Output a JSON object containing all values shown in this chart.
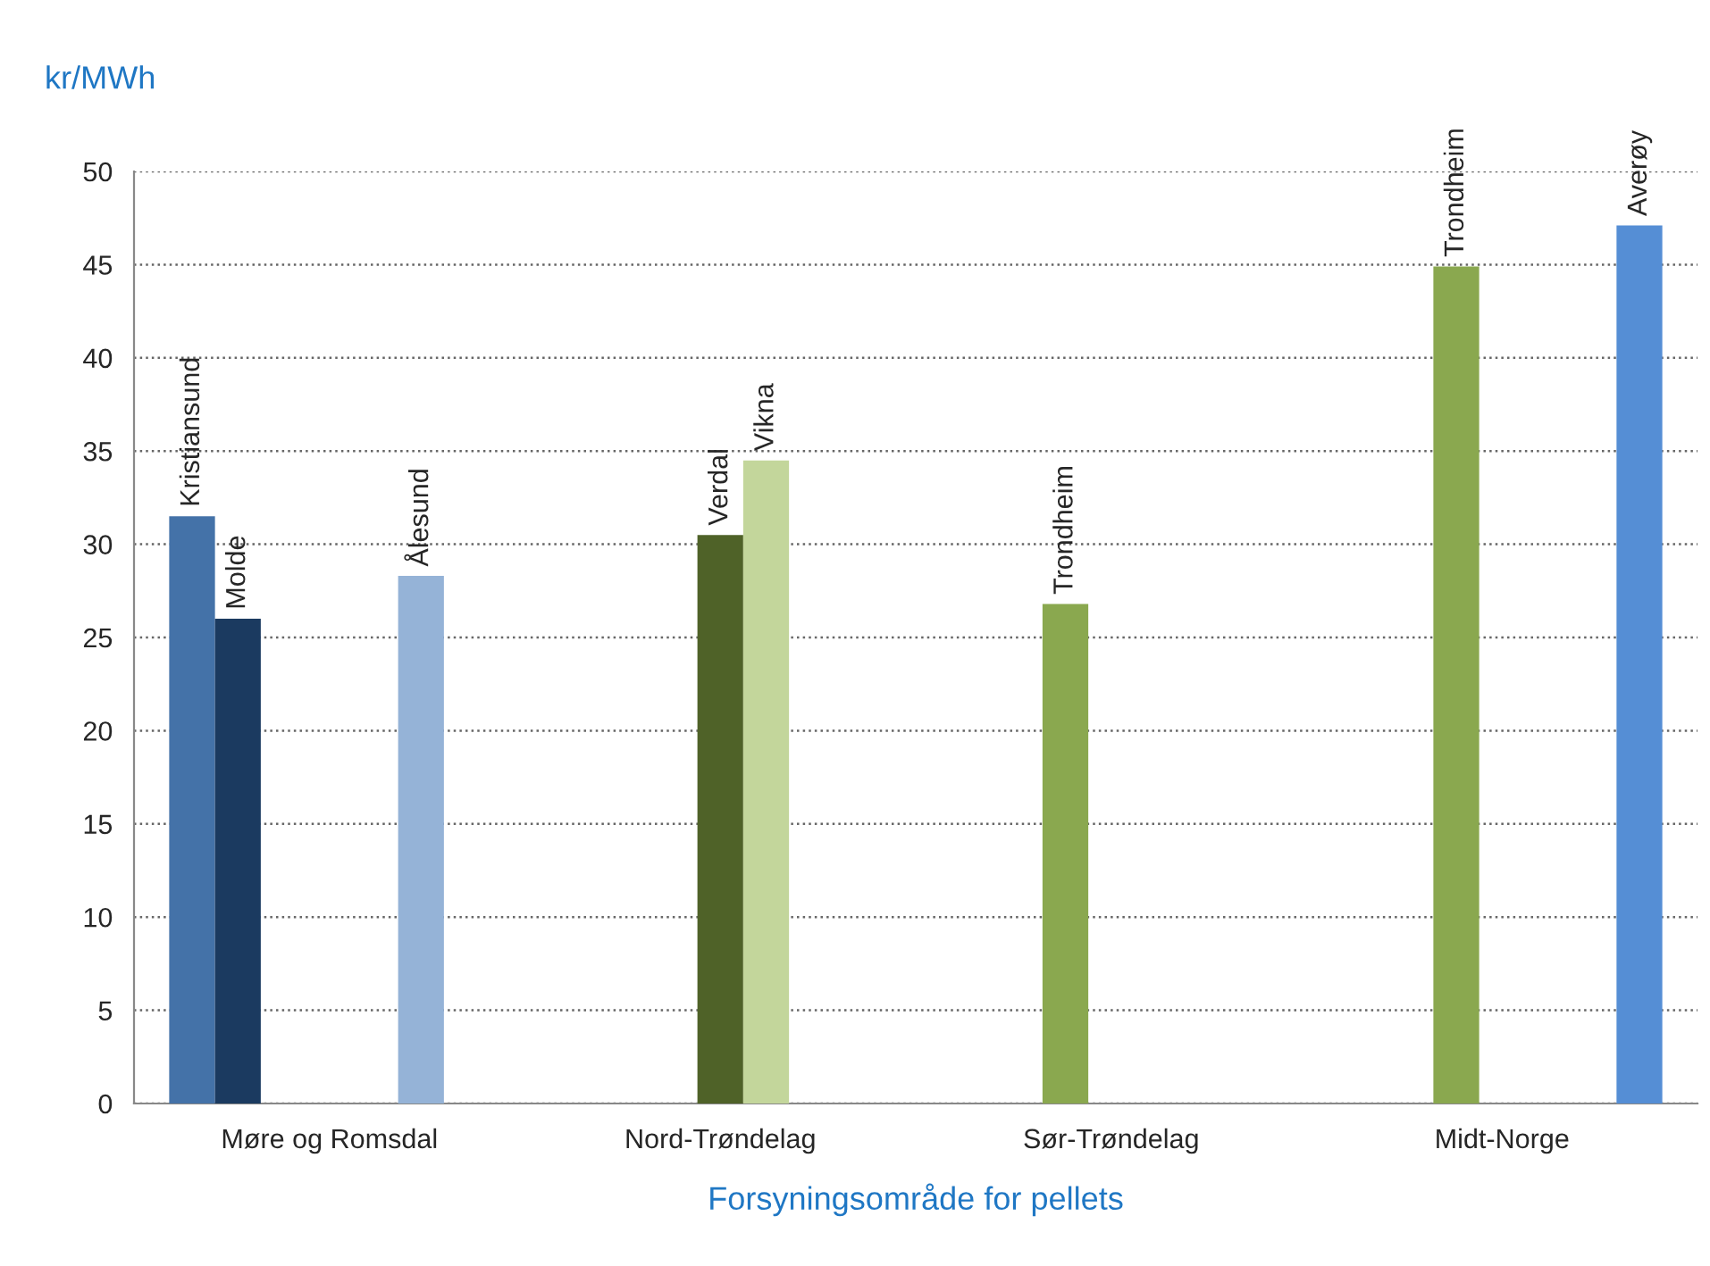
{
  "chart_data": {
    "type": "bar",
    "ylabel": "kr/MWh",
    "xlabel": "Forsyningsområde for pellets",
    "categories": [
      "Møre og Romsdal",
      "Nord-Trøndelag",
      "Sør-Trøndelag",
      "Midt-Norge"
    ],
    "series": [
      {
        "name": "Kristiansund",
        "color": "#4472a8",
        "values": [
          31.5,
          null,
          null,
          null
        ]
      },
      {
        "name": "Molde",
        "color": "#1b3a60",
        "values": [
          26,
          null,
          null,
          null
        ]
      },
      {
        "name": "Trondheim",
        "color": "#8aa84f",
        "values": [
          null,
          null,
          26.8,
          44.9
        ]
      },
      {
        "name": "Verdal",
        "color": "#4f6228",
        "values": [
          null,
          30.5,
          null,
          null
        ]
      },
      {
        "name": "Vikna",
        "color": "#c3d69b",
        "values": [
          null,
          34.5,
          null,
          null
        ]
      },
      {
        "name": "Ålesund",
        "color": "#95b3d7",
        "values": [
          28.3,
          null,
          null,
          null
        ]
      },
      {
        "name": "Averøy",
        "color": "#558ed5",
        "values": [
          null,
          null,
          null,
          47.1
        ]
      }
    ],
    "ylim": [
      0,
      50
    ],
    "yticks": [
      0,
      5,
      10,
      15,
      20,
      25,
      30,
      35,
      40,
      45,
      50
    ],
    "grid": "y",
    "legend": false
  }
}
